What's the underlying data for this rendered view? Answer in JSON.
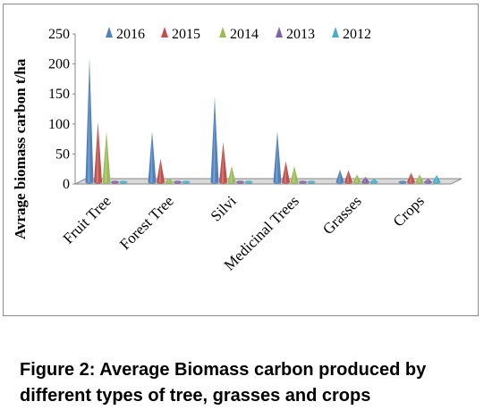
{
  "chart_data": {
    "type": "bar",
    "style": "3d-cone",
    "categories": [
      "Fruit Tree",
      "Forest Tree",
      "Silvi",
      "Medicinal Trees",
      "Grasses",
      "Crops"
    ],
    "series": [
      {
        "name": "2016",
        "color": "#4F81BD",
        "values": [
          210,
          88,
          145,
          88,
          24,
          2
        ]
      },
      {
        "name": "2015",
        "color": "#C0504D",
        "values": [
          103,
          42,
          70,
          38,
          23,
          19
        ]
      },
      {
        "name": "2014",
        "color": "#9BBB59",
        "values": [
          88,
          10,
          30,
          30,
          16,
          16
        ]
      },
      {
        "name": "2013",
        "color": "#8064A2",
        "values": [
          5,
          2,
          3,
          2,
          12,
          9
        ]
      },
      {
        "name": "2012",
        "color": "#4BACC6",
        "values": [
          4,
          2,
          2,
          2,
          9,
          15
        ]
      }
    ],
    "ylabel": "Avrage biomass carbon t/ha",
    "xlabel": "",
    "ylim": [
      0,
      250
    ],
    "yticks": [
      "0",
      "50",
      "100",
      "150",
      "200",
      "250"
    ],
    "grid": false,
    "legend_position": "top"
  },
  "caption": {
    "line1": "Figure 2: Average Biomass carbon produced by",
    "line2": "different types of tree, grasses and crops"
  }
}
